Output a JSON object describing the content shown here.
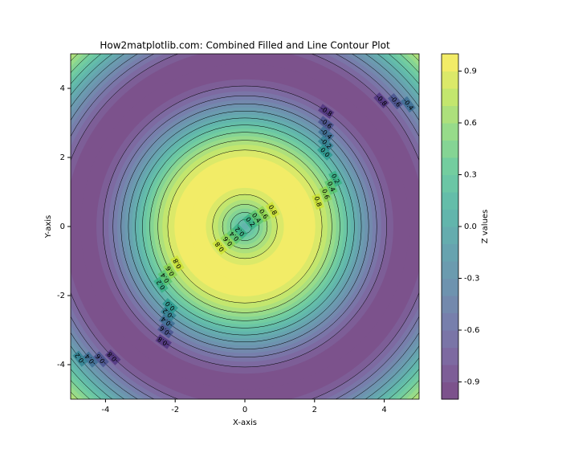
{
  "chart_data": {
    "type": "contour",
    "title": "How2matplotlib.com: Combined Filled and Line Contour Plot",
    "xlabel": "X-axis",
    "ylabel": "Y-axis",
    "colorbar_label": "Z values",
    "surface": "sin(sqrt(x^2+y^2))",
    "xlim": [
      -5,
      5
    ],
    "ylim": [
      -5,
      5
    ],
    "xticks": [
      -4,
      -2,
      0,
      2,
      4
    ],
    "yticks": [
      -4,
      -2,
      0,
      2,
      4
    ],
    "colormap": "viridis",
    "fill_opacity": 0.7,
    "levels": [
      -1,
      -0.9,
      -0.8,
      -0.7,
      -0.6,
      -0.5,
      -0.4,
      -0.3,
      -0.2,
      -0.1,
      0,
      0.1,
      0.2,
      0.3,
      0.4,
      0.5,
      0.6,
      0.7,
      0.8,
      0.9,
      1
    ],
    "line_levels": [
      -0.8,
      -0.6,
      -0.4,
      -0.2,
      {
        "value": 0,
        "label": "0.0"
      },
      0.2,
      0.4,
      0.6,
      0.8
    ],
    "line_color": "#000000",
    "clim": [
      -1,
      1
    ],
    "cticks": [
      -0.9,
      -0.6,
      -0.3,
      {
        "value": 0,
        "label": "0.0"
      },
      0.3,
      0.6,
      0.9
    ]
  }
}
